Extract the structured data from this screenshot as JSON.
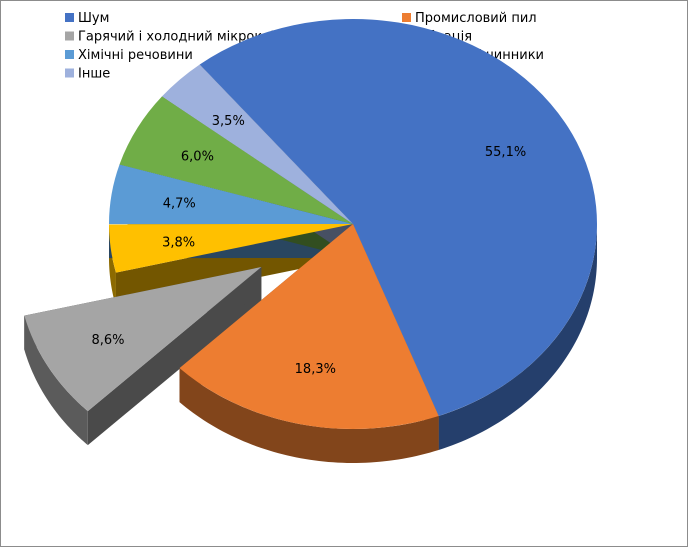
{
  "chart_data": {
    "type": "pie",
    "style": "3d-exploded",
    "title": "",
    "legend_position": "top",
    "slices": [
      {
        "label": "Шум",
        "value": 55.1,
        "value_label": "55,1%",
        "color": "#4472c4"
      },
      {
        "label": "Промисловий пил",
        "value": 18.3,
        "value_label": "18,3%",
        "color": "#ed7d31"
      },
      {
        "label": "Гарячий і холодний мікроклімат",
        "value": 8.6,
        "value_label": "8,6%",
        "color": "#a5a5a5",
        "exploded": true
      },
      {
        "label": "Вібрація",
        "value": 3.8,
        "value_label": "3,8%",
        "color": "#ffc000"
      },
      {
        "label": "Хімічні речовини",
        "value": 4.7,
        "value_label": "4,7%",
        "color": "#5b9bd5"
      },
      {
        "label": "Біологічні чинники",
        "value": 6.0,
        "value_label": "6,0%",
        "color": "#70ad47"
      },
      {
        "label": "Інше",
        "value": 3.5,
        "value_label": "3,5%",
        "color": "#9eb1dd"
      }
    ]
  }
}
